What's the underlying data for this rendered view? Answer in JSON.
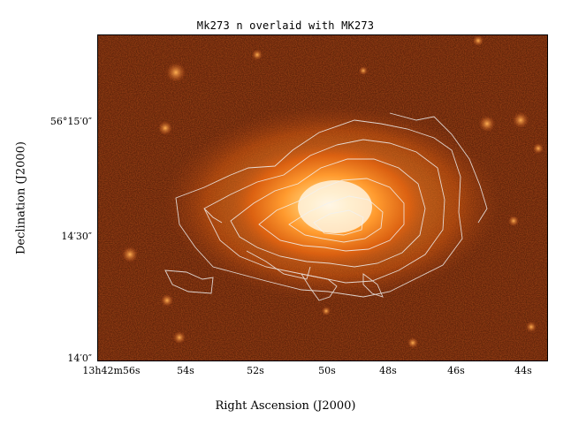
{
  "title": "Mk273 n overlaid with MK273",
  "axes": {
    "x_label": "Right Ascension (J2000)",
    "y_label": "Declination (J2000)",
    "x_ticks": [
      "13h42m56s",
      "54s",
      "52s",
      "50s",
      "48s",
      "46s",
      "44s"
    ],
    "y_ticks": [
      "56°15′0″",
      "14′30″",
      "14′0″"
    ]
  },
  "image": {
    "colormap": "heat (black-red-orange-white)",
    "overlay": "white contours",
    "background_color": "#8a3a12",
    "core_color": "#fff3dc"
  }
}
